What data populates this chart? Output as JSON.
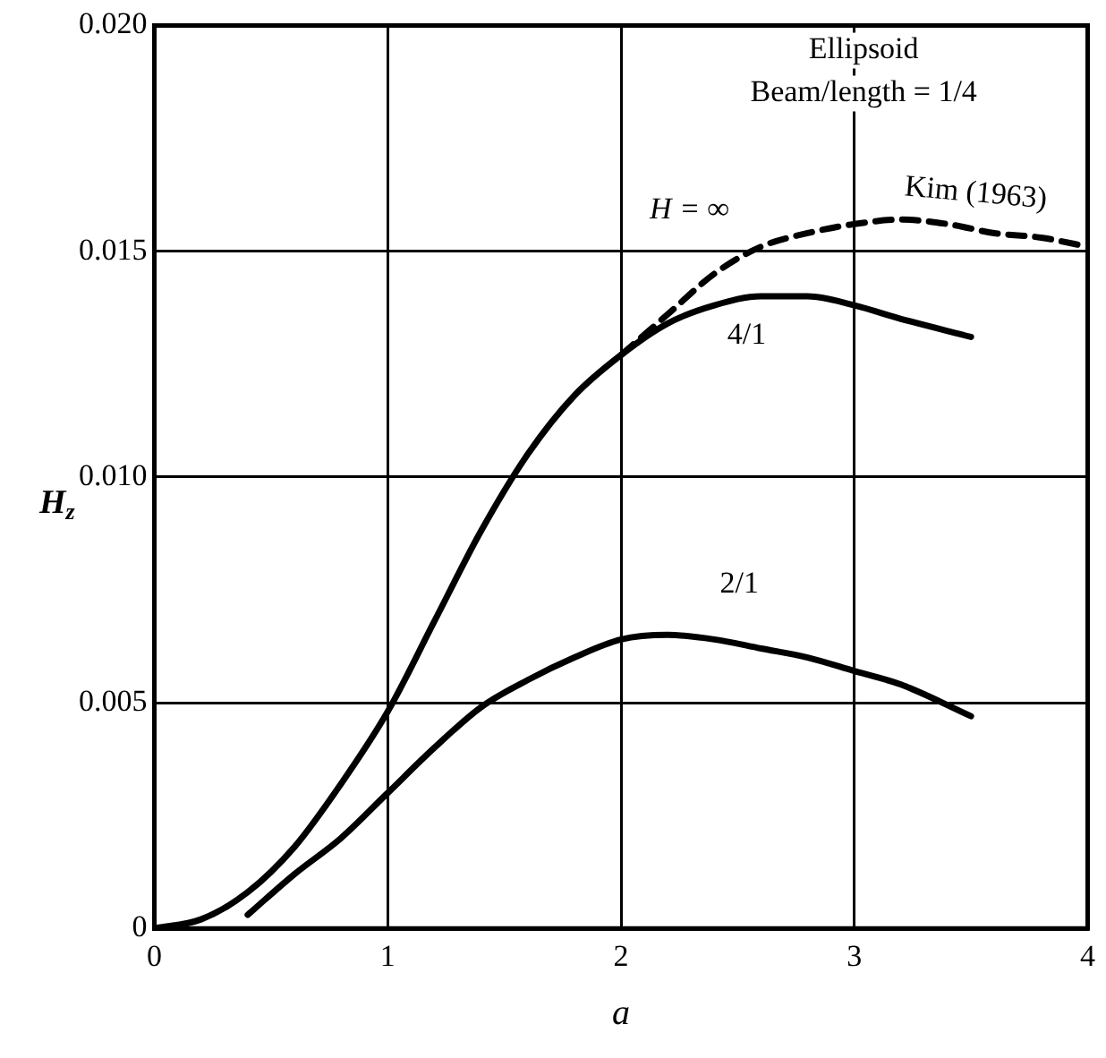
{
  "chart_data": {
    "type": "line",
    "xlabel": "a",
    "ylabel": "H$_{z}$",
    "annotations": [
      "Ellipsoid",
      "Beam/length = 1/4",
      "Kim (1963)"
    ],
    "xlim": [
      0,
      4
    ],
    "xticks": [
      0,
      1,
      2,
      3,
      4
    ],
    "ylim": [
      0,
      0.02
    ],
    "yticks": [
      0,
      0.005,
      {
        "value": 0.01,
        "label": "0.010"
      },
      0.015,
      {
        "value": 0.02,
        "label": "0.020"
      }
    ],
    "grid": true,
    "legend": false,
    "marker": "none",
    "series": [
      {
        "name": "H = ∞",
        "color": "#000000",
        "line_style": "dashed",
        "x": [
          2.0,
          2.2,
          2.4,
          2.6,
          2.8,
          3.0,
          3.2,
          3.4,
          3.6,
          3.8,
          4.0
        ],
        "values": [
          0.0127,
          0.0136,
          0.0145,
          0.0151,
          0.0154,
          0.0156,
          0.0157,
          0.0156,
          0.0154,
          0.0153,
          0.0151
        ]
      },
      {
        "name": "4/1",
        "color": "#000000",
        "line_style": "solid",
        "x": [
          0,
          0.2,
          0.4,
          0.6,
          0.8,
          1.0,
          1.2,
          1.4,
          1.6,
          1.8,
          2.0,
          2.2,
          2.4,
          2.6,
          2.8,
          3.0,
          3.2,
          3.5
        ],
        "values": [
          0,
          0.0002,
          0.0008,
          0.0018,
          0.0032,
          0.0048,
          0.0068,
          0.0088,
          0.0105,
          0.0118,
          0.0127,
          0.0134,
          0.0138,
          0.014,
          0.014,
          0.0138,
          0.0135,
          0.0131
        ]
      },
      {
        "name": "2/1",
        "color": "#000000",
        "line_style": "solid",
        "x": [
          0.4,
          0.6,
          0.8,
          1.0,
          1.2,
          1.4,
          1.6,
          1.8,
          2.0,
          2.2,
          2.4,
          2.6,
          2.8,
          3.0,
          3.2,
          3.5
        ],
        "values": [
          0.0003,
          0.0012,
          0.002,
          0.003,
          0.004,
          0.0049,
          0.0055,
          0.006,
          0.0064,
          0.0065,
          0.0064,
          0.0062,
          0.006,
          0.0057,
          0.0054,
          0.0047
        ]
      }
    ]
  }
}
